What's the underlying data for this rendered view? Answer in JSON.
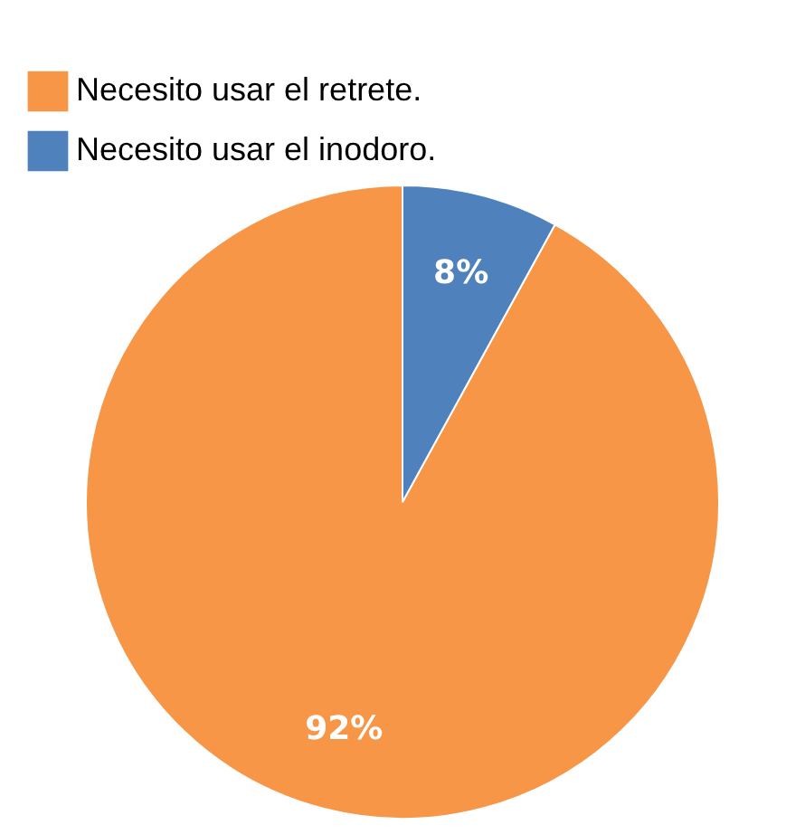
{
  "chart_data": {
    "type": "pie",
    "categories": [
      "Necesito usar el retrete.",
      "Necesito usar el inodoro."
    ],
    "values": [
      92,
      8
    ],
    "colors": [
      "#f79646",
      "#4f81bd"
    ],
    "value_labels": [
      "92%",
      "8%"
    ],
    "legend": "top"
  }
}
